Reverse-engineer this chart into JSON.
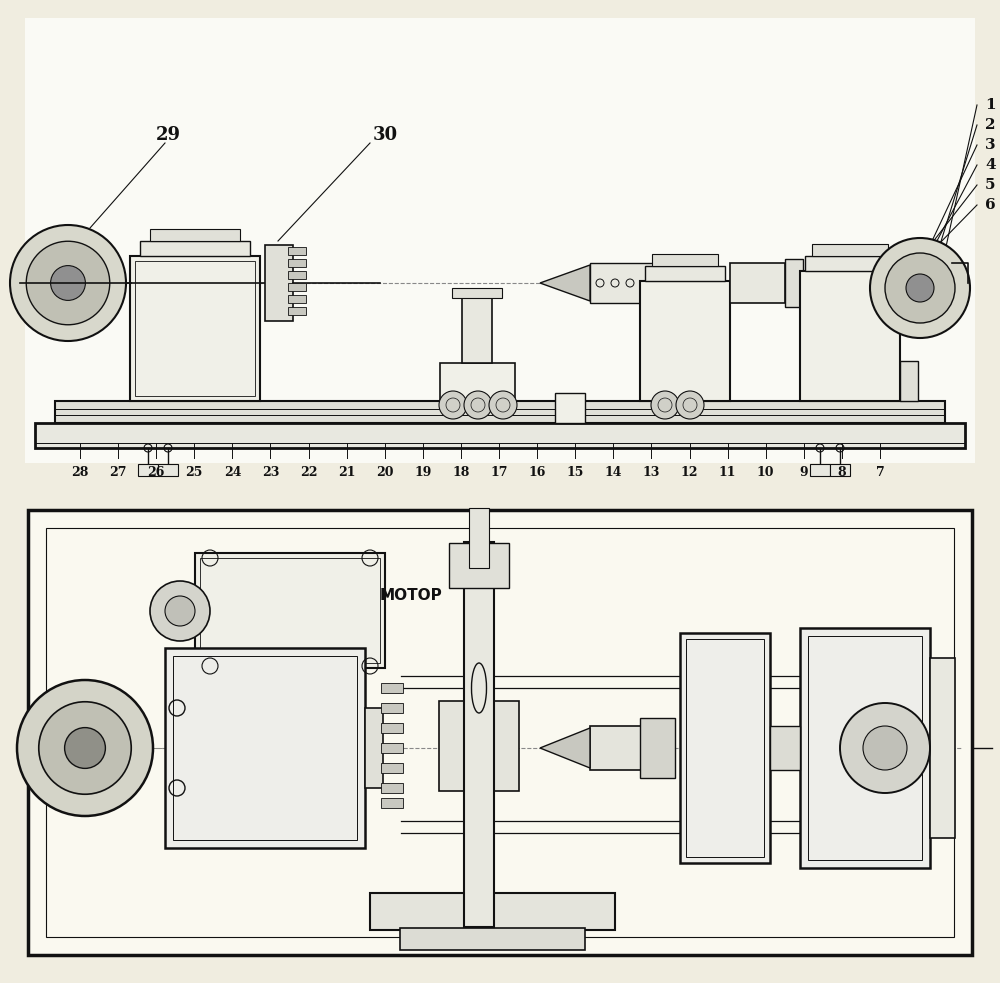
{
  "bg_color": "#f0ede0",
  "line_color": "#111111",
  "fig_width": 10.0,
  "fig_height": 9.83,
  "label_29": "29",
  "label_30": "30",
  "bottom_labels": [
    "28",
    "27",
    "26",
    "25",
    "24",
    "23",
    "22",
    "21",
    "20",
    "19",
    "18",
    "17",
    "16",
    "15",
    "14",
    "13",
    "12",
    "11",
    "10",
    "9",
    "8",
    "7"
  ],
  "right_labels": [
    "1",
    "2",
    "3",
    "4",
    "5",
    "6"
  ],
  "motor_label": "МОТОР"
}
